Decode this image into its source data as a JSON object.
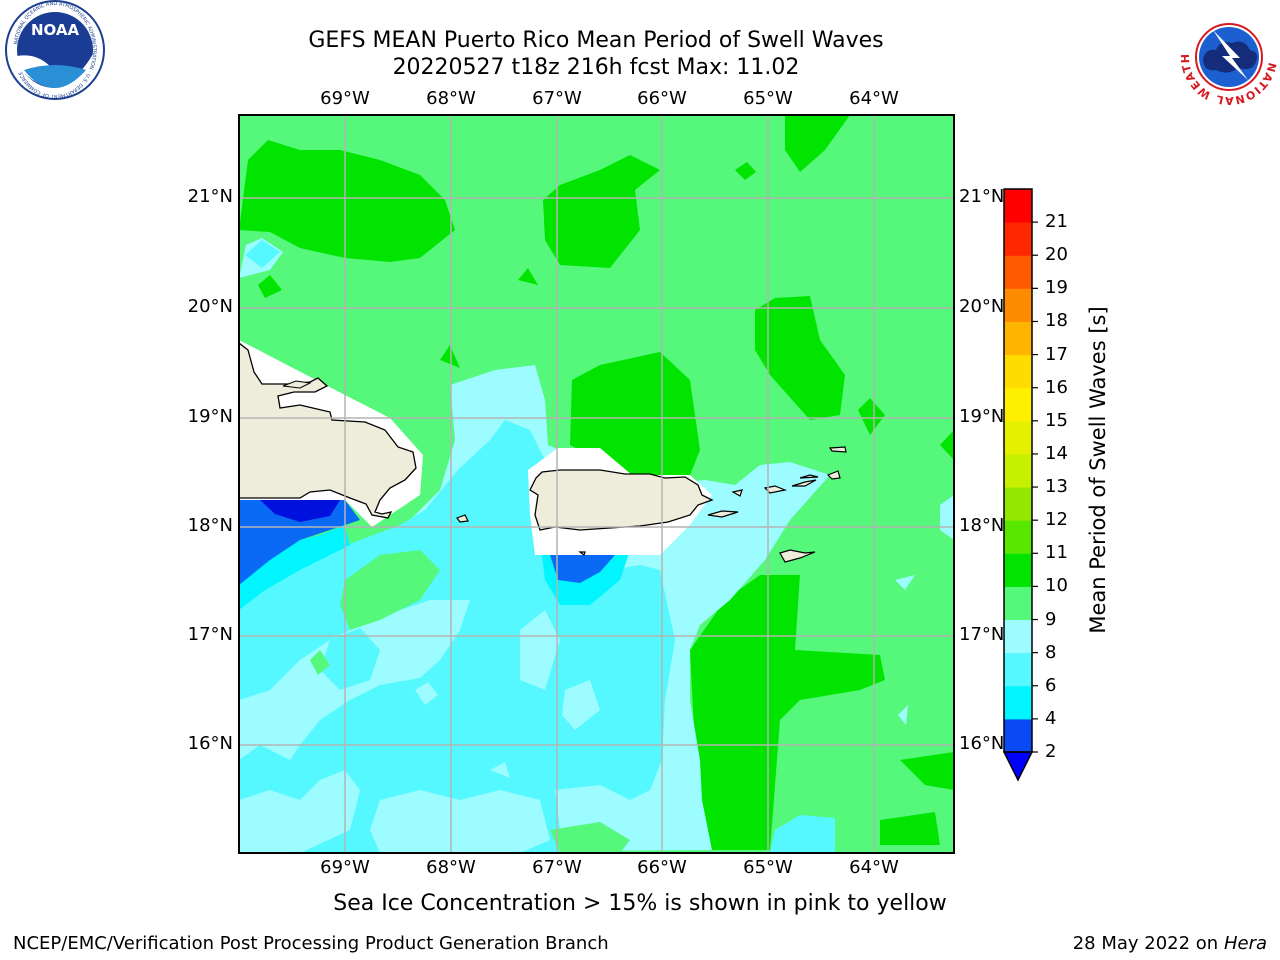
{
  "title": {
    "line1": "GEFS MEAN Puerto Rico Mean Period of Swell Waves",
    "line2": "20220527 t18z 216h fcst   Max: 11.02"
  },
  "map": {
    "lon_labels": [
      "69°W",
      "68°W",
      "67°W",
      "66°W",
      "65°W",
      "64°W"
    ],
    "lat_labels": [
      "21°N",
      "20°N",
      "19°N",
      "18°N",
      "17°N",
      "16°N"
    ]
  },
  "colorbar": {
    "label": "Mean Period of Swell Waves [s]",
    "ticks": [
      "2",
      "4",
      "6",
      "8",
      "9",
      "10",
      "11",
      "12",
      "13",
      "14",
      "15",
      "16",
      "17",
      "18",
      "19",
      "20",
      "21"
    ],
    "colors": [
      "#0a4af5",
      "#00f5ff",
      "#55f8ff",
      "#9cfcff",
      "#55f87b",
      "#00e400",
      "#58e800",
      "#94e800",
      "#c6f000",
      "#e5f000",
      "#fff000",
      "#ffdc00",
      "#ffb400",
      "#ff8c00",
      "#ff5a00",
      "#ff2800",
      "#ff0000"
    ],
    "under_color": "#0000ff"
  },
  "colors": {
    "land": "#eeecda",
    "ocean_green": "#55f87b",
    "deep_green": "#00e400",
    "light_cyan": "#9cfcff",
    "cyan": "#55f8ff",
    "bright_cyan": "#00f5ff",
    "blue": "#0a6af5",
    "grid": "#b4b4b4"
  },
  "logos": {
    "left_text": "NOAA",
    "left_ring": "NATIONAL OCEANIC AND ATMOSPHERIC ADMINISTRATION · U.S. DEPARTMENT OF COMMERCE",
    "right_ring": "NATIONAL WEATHER SERVICE"
  },
  "footnote": "Sea Ice Concentration > 15% is shown in pink to yellow",
  "footer": {
    "left": "NCEP/EMC/Verification Post Processing Product Generation Branch",
    "right_date": "28 May 2022 on",
    "right_host": "Hera"
  }
}
